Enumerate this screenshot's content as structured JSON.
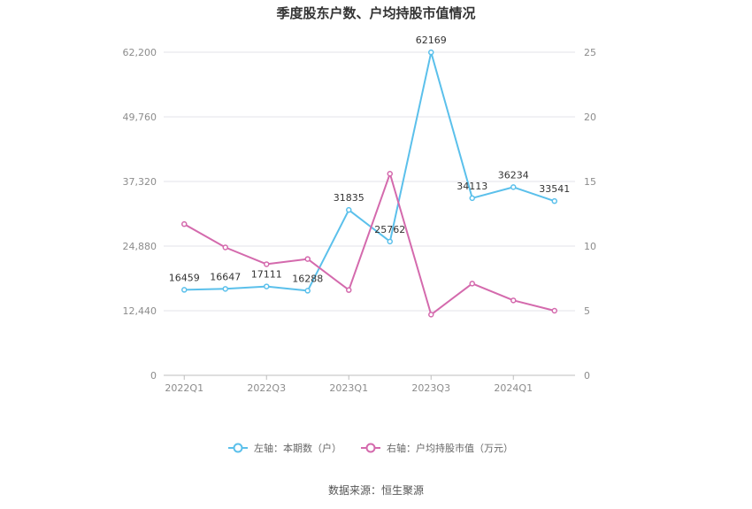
{
  "chart_data": {
    "type": "line",
    "title": "季度股东户数、户均持股市值情况",
    "source": "数据来源：恒生聚源",
    "categories": [
      "2022Q1",
      "2022Q2",
      "2022Q3",
      "2022Q4",
      "2023Q1",
      "2023Q2",
      "2023Q3",
      "2023Q4",
      "2024Q1",
      "2024Q2"
    ],
    "x_tick_labels": [
      "2022Q1",
      "2022Q3",
      "2023Q1",
      "2023Q3",
      "2024Q1"
    ],
    "y_left": {
      "ticks": [
        "0",
        "12,440",
        "24,880",
        "37,320",
        "49,760",
        "62,200"
      ],
      "ylim": [
        0,
        62200
      ]
    },
    "y_right": {
      "ticks": [
        "0",
        "5",
        "10",
        "15",
        "20",
        "25"
      ],
      "ylim": [
        0,
        25
      ]
    },
    "series": [
      {
        "name": "左轴：本期数（户）",
        "axis": "left",
        "color": "#5bc0eb",
        "values": [
          16459,
          16647,
          17111,
          16288,
          31835,
          25762,
          62169,
          34113,
          36234,
          33541
        ],
        "labels": [
          "16459",
          "16647",
          "17111",
          "16288",
          "31835",
          "25762",
          "62169",
          "34113",
          "36234",
          "33541"
        ]
      },
      {
        "name": "右轴：户均持股市值（万元）",
        "axis": "right",
        "color": "#d46aad",
        "values": [
          11.7,
          9.9,
          8.6,
          9.0,
          6.6,
          15.6,
          4.7,
          7.1,
          5.8,
          5.0
        ]
      }
    ],
    "grid": true,
    "legend_position": "bottom"
  }
}
